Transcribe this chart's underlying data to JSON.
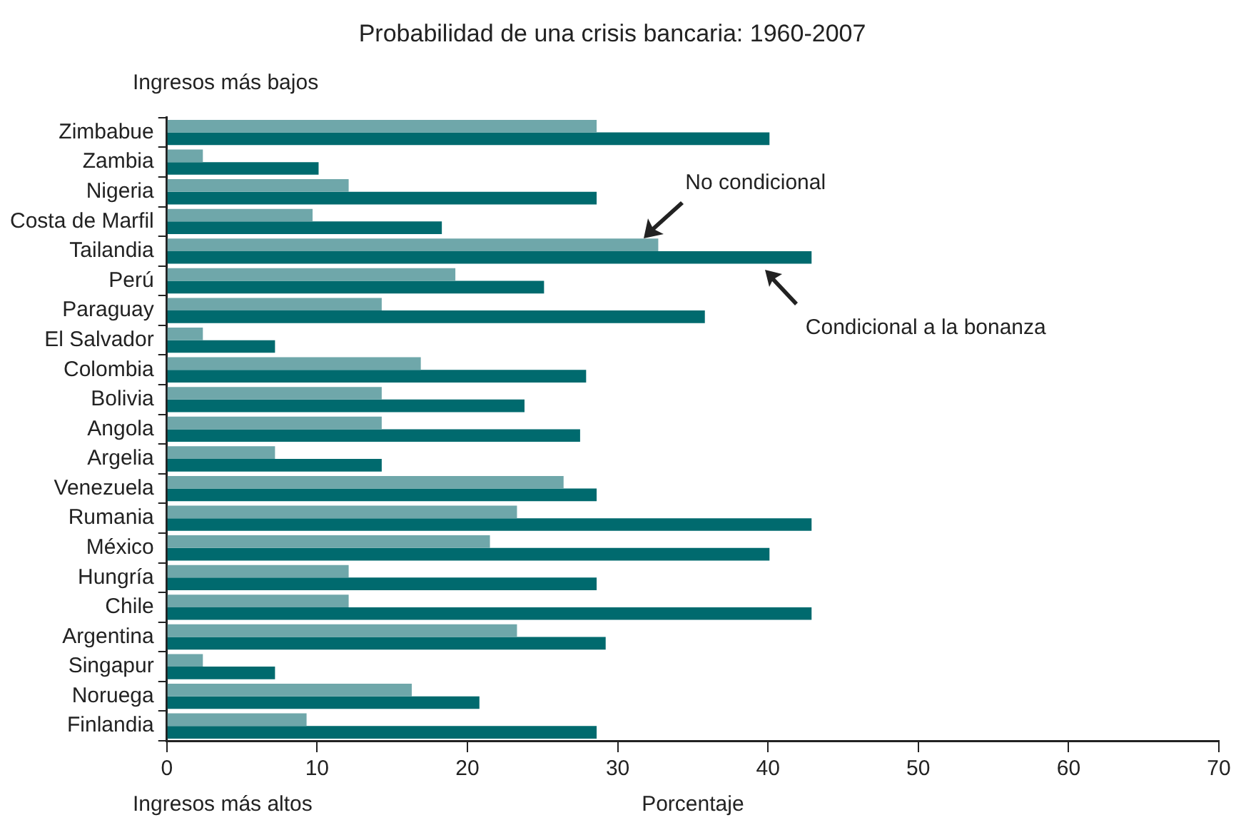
{
  "chart_data": {
    "type": "bar",
    "orientation": "horizontal",
    "title": "Probabilidad de una crisis bancaria: 1960-2007",
    "xlabel": "Porcentaje",
    "categories": [
      "Zimbabue",
      "Zambia",
      "Nigeria",
      "Costa de Marfil",
      "Tailandia",
      "Perú",
      "Paraguay",
      "El Salvador",
      "Colombia",
      "Bolivia",
      "Angola",
      "Argelia",
      "Venezuela",
      "Rumania",
      "México",
      "Hungría",
      "Chile",
      "Argentina",
      "Singapur",
      "Noruega",
      "Finlandia"
    ],
    "series": [
      {
        "name": "No condicional",
        "color": "#6fa7aa",
        "values": [
          28.6,
          2.4,
          12.1,
          9.7,
          32.7,
          19.2,
          14.3,
          2.4,
          16.9,
          14.3,
          14.3,
          7.2,
          26.4,
          23.3,
          21.5,
          12.1,
          12.1,
          23.3,
          2.4,
          16.3,
          9.3
        ]
      },
      {
        "name": "Condicional a la bonanza",
        "color": "#006a6e",
        "values": [
          40.1,
          10.1,
          28.6,
          18.3,
          42.9,
          25.1,
          35.8,
          7.2,
          27.9,
          23.8,
          27.5,
          14.3,
          28.6,
          42.9,
          40.1,
          28.6,
          42.9,
          29.2,
          7.2,
          20.8,
          28.6
        ]
      }
    ],
    "xlim": [
      0,
      70
    ],
    "xticks": [
      0,
      10,
      20,
      30,
      40,
      50,
      60,
      70
    ],
    "grid": false,
    "legend": false,
    "annotations": [
      "Ingresos más bajos",
      "Ingresos más altos"
    ]
  }
}
